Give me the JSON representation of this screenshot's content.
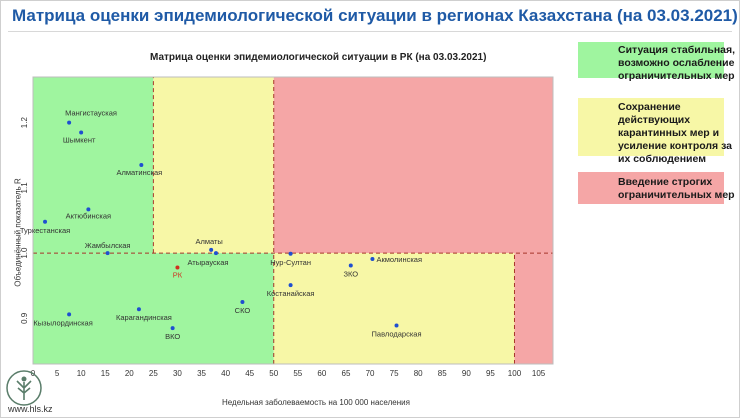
{
  "header": {
    "title": "Матрица оценки эпидемиологической ситуации в регионах Казахстана (на 03.03.2021)"
  },
  "legend": [
    {
      "color": "#9ff59f",
      "text": "Ситуация стабильная, возможно ослабление ограничительных мер"
    },
    {
      "color": "#f7f7a6",
      "text": "Сохранение действующих карантинных мер и усиление контроля за их соблюдением"
    },
    {
      "color": "#f5a6a6",
      "text": "Введение строгих ограничительных мер"
    }
  ],
  "footer": {
    "site": "www.hls.kz"
  },
  "chart_data": {
    "type": "scatter",
    "title": "Матрица оценки эпидемиологической ситуации в РК (на 03.03.2021)",
    "xlabel": "Недельная заболеваемость на 100 000 населения",
    "ylabel": "Объединённый показатель R",
    "xlim": [
      0,
      108
    ],
    "ylim": [
      0.83,
      1.27
    ],
    "xticks": [
      0,
      5,
      10,
      15,
      20,
      25,
      30,
      35,
      40,
      45,
      50,
      55,
      60,
      65,
      70,
      75,
      80,
      85,
      90,
      95,
      100,
      105
    ],
    "yticks": [
      0.9,
      1.0,
      1.1,
      1.2
    ],
    "zones": [
      {
        "x0": 0,
        "x1": 25,
        "y0": 1.0,
        "y1": 1.27,
        "color": "#9ff59f"
      },
      {
        "x0": 25,
        "x1": 50,
        "y0": 1.0,
        "y1": 1.27,
        "color": "#f7f7a6"
      },
      {
        "x0": 50,
        "x1": 108,
        "y0": 1.0,
        "y1": 1.27,
        "color": "#f5a6a6"
      },
      {
        "x0": 0,
        "x1": 50,
        "y0": 0.83,
        "y1": 1.0,
        "color": "#9ff59f"
      },
      {
        "x0": 50,
        "x1": 100,
        "y0": 0.83,
        "y1": 1.0,
        "color": "#f7f7a6"
      },
      {
        "x0": 100,
        "x1": 108,
        "y0": 0.83,
        "y1": 1.0,
        "color": "#f5a6a6"
      }
    ],
    "points": [
      {
        "label": "Мангистауская",
        "x": 7.5,
        "y": 1.2,
        "color": "#1f4fd0",
        "label_color": "#333333",
        "lx": -4,
        "ly": -7,
        "anchor": "start"
      },
      {
        "label": "Шымкент",
        "x": 10,
        "y": 1.185,
        "color": "#1f4fd0",
        "label_color": "#333333",
        "lx": -2,
        "ly": 10,
        "anchor": "middle"
      },
      {
        "label": "Алматинская",
        "x": 22.5,
        "y": 1.135,
        "color": "#1f4fd0",
        "label_color": "#333333",
        "lx": -2,
        "ly": 10,
        "anchor": "middle"
      },
      {
        "label": "Актюбинская",
        "x": 11.5,
        "y": 1.067,
        "color": "#1f4fd0",
        "label_color": "#333333",
        "lx": 0,
        "ly": 9,
        "anchor": "middle"
      },
      {
        "label": "Туркестанская",
        "x": 2.5,
        "y": 1.048,
        "color": "#1f4fd0",
        "label_color": "#333333",
        "lx": 0,
        "ly": 11,
        "anchor": "middle"
      },
      {
        "label": "Жамбылская",
        "x": 15.5,
        "y": 1.0,
        "color": "#1f4fd0",
        "label_color": "#333333",
        "lx": 0,
        "ly": -5,
        "anchor": "middle"
      },
      {
        "label": "Алматы",
        "x": 37,
        "y": 1.005,
        "color": "#1f4fd0",
        "label_color": "#333333",
        "lx": -2,
        "ly": -6,
        "anchor": "middle"
      },
      {
        "label": "Атырауская",
        "x": 38,
        "y": 1.0,
        "color": "#1f4fd0",
        "label_color": "#333333",
        "lx": -8,
        "ly": 12,
        "anchor": "middle"
      },
      {
        "label": "РК",
        "x": 30,
        "y": 0.978,
        "color": "#d03020",
        "label_color": "#d03020",
        "lx": 0,
        "ly": 10,
        "anchor": "middle"
      },
      {
        "label": "Нур-Султан",
        "x": 53.5,
        "y": 0.999,
        "color": "#1f4fd0",
        "label_color": "#333333",
        "lx": 0,
        "ly": 11,
        "anchor": "middle"
      },
      {
        "label": "Костанайская",
        "x": 53.5,
        "y": 0.951,
        "color": "#1f4fd0",
        "label_color": "#333333",
        "lx": 0,
        "ly": 11,
        "anchor": "middle"
      },
      {
        "label": "Акмолинская",
        "x": 70.5,
        "y": 0.991,
        "color": "#1f4fd0",
        "label_color": "#333333",
        "lx": 4,
        "ly": 3,
        "anchor": "start"
      },
      {
        "label": "ЗКО",
        "x": 66,
        "y": 0.981,
        "color": "#1f4fd0",
        "label_color": "#333333",
        "lx": 0,
        "ly": 11,
        "anchor": "middle"
      },
      {
        "label": "Кызылординская",
        "x": 7.5,
        "y": 0.906,
        "color": "#1f4fd0",
        "label_color": "#333333",
        "lx": -6,
        "ly": 11,
        "anchor": "middle"
      },
      {
        "label": "Карагандинская",
        "x": 22,
        "y": 0.914,
        "color": "#1f4fd0",
        "label_color": "#333333",
        "lx": 5,
        "ly": 11,
        "anchor": "middle"
      },
      {
        "label": "СКО",
        "x": 43.5,
        "y": 0.925,
        "color": "#1f4fd0",
        "label_color": "#333333",
        "lx": 0,
        "ly": 11,
        "anchor": "middle"
      },
      {
        "label": "ВКО",
        "x": 29,
        "y": 0.885,
        "color": "#1f4fd0",
        "label_color": "#333333",
        "lx": 0,
        "ly": 11,
        "anchor": "middle"
      },
      {
        "label": "Павлодарская",
        "x": 75.5,
        "y": 0.889,
        "color": "#1f4fd0",
        "label_color": "#333333",
        "lx": 0,
        "ly": 11,
        "anchor": "middle"
      }
    ],
    "ref_lines": [
      {
        "axis": "x",
        "value": 25,
        "y0": 1.0,
        "y1": 1.27
      },
      {
        "axis": "x",
        "value": 50,
        "y0": 0.83,
        "y1": 1.27
      },
      {
        "axis": "x",
        "value": 100,
        "y0": 0.83,
        "y1": 1.0
      },
      {
        "axis": "y",
        "value": 1.0,
        "x0": 0,
        "x1": 108
      }
    ]
  }
}
